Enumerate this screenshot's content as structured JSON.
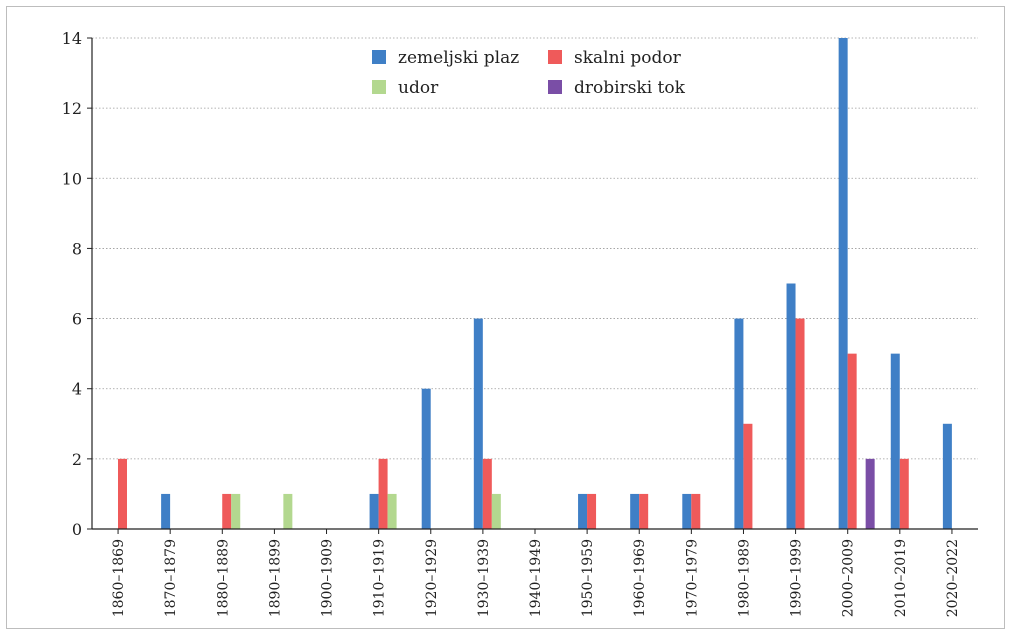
{
  "chart_data": {
    "type": "bar",
    "title": "",
    "xlabel": "",
    "ylabel": "",
    "ylim": [
      0,
      14
    ],
    "yticks": [
      0,
      2,
      4,
      6,
      8,
      10,
      12,
      14
    ],
    "grid": true,
    "legend_position": "top-center",
    "categories": [
      "1860–1869",
      "1870–1879",
      "1880–1889",
      "1890–1899",
      "1900–1909",
      "1910–1919",
      "1920–1929",
      "1930–1939",
      "1940–1949",
      "1950–1959",
      "1960–1969",
      "1970–1979",
      "1980–1989",
      "1990–1999",
      "2000–2009",
      "2010–2019",
      "2020–2022"
    ],
    "series": [
      {
        "name": "zemeljski plaz",
        "color": "#3f7fc6",
        "values": [
          0,
          1,
          0,
          0,
          0,
          1,
          4,
          6,
          0,
          1,
          1,
          1,
          6,
          7,
          14,
          5,
          3
        ]
      },
      {
        "name": "skalni podor",
        "color": "#ef5a5a",
        "values": [
          2,
          0,
          1,
          0,
          0,
          2,
          0,
          2,
          0,
          1,
          1,
          1,
          3,
          6,
          5,
          2,
          0
        ]
      },
      {
        "name": "udor",
        "color": "#b3d88f",
        "values": [
          0,
          0,
          1,
          1,
          0,
          1,
          0,
          1,
          0,
          0,
          0,
          0,
          0,
          0,
          0,
          0,
          0
        ]
      },
      {
        "name": "drobirski tok",
        "color": "#7a4ea6",
        "values": [
          0,
          0,
          0,
          0,
          0,
          0,
          0,
          0,
          0,
          0,
          0,
          0,
          0,
          0,
          2,
          0,
          0
        ]
      }
    ]
  }
}
